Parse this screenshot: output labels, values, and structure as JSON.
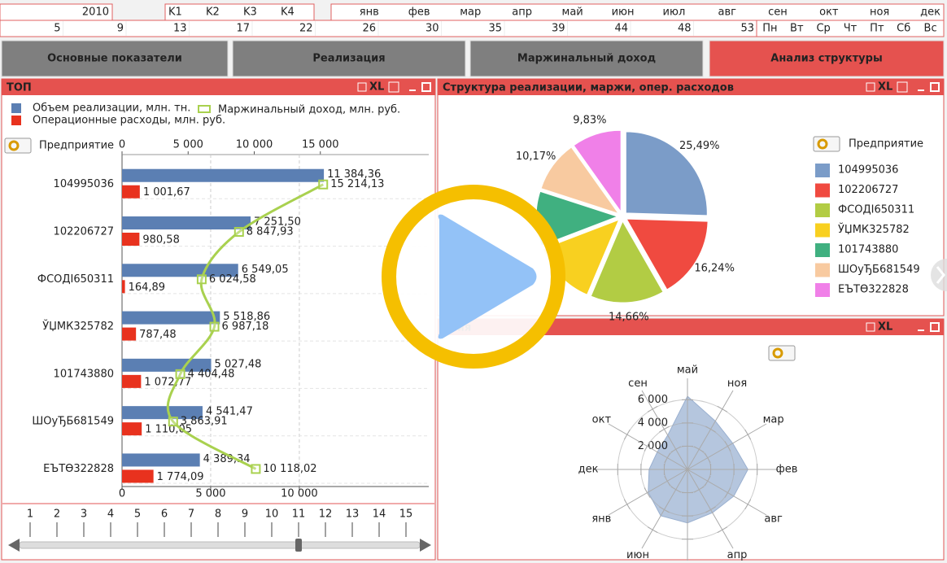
{
  "filters": {
    "year": "2010",
    "quarters": [
      "K1",
      "K2",
      "K3",
      "K4"
    ],
    "months": [
      "янв",
      "фев",
      "мар",
      "апр",
      "май",
      "июн",
      "июл",
      "авг",
      "сен",
      "окт",
      "ноя",
      "дек"
    ],
    "weeks": [
      5,
      9,
      13,
      17,
      22,
      26,
      30,
      35,
      39,
      44,
      48,
      53
    ],
    "weekdays": [
      "Пн",
      "Вт",
      "Ср",
      "Чт",
      "Пт",
      "Сб",
      "Вс"
    ]
  },
  "tabs": [
    "Основные показатели",
    "Реализация",
    "Маржинальный доход",
    "Анализ структуры"
  ],
  "icon_text": "XL",
  "top_panel": {
    "title": "ТОП",
    "dimension_label": "Предприятие",
    "chart_data": {
      "type": "bar",
      "orientation": "horizontal",
      "categories": [
        "104995036",
        "102206727",
        "ФСОДІ650311",
        "ЎЏМК325782",
        "101743880",
        "ШОуЂБ681549",
        "ЕЪТӨ322828"
      ],
      "series": [
        {
          "name": "Объем реализации, млн. тн.",
          "color": "#5b7fb3",
          "values": [
            11384.36,
            7251.5,
            6549.05,
            5518.86,
            5027.48,
            4541.47,
            4389.34
          ],
          "value_labels": [
            "11 384,36",
            "7 251,50",
            "6 549,05",
            "5 518,86",
            "5 027,48",
            "4 541,47",
            "4 389,34"
          ]
        },
        {
          "name": "Операционные расходы, млн. руб.",
          "color": "#e8321e",
          "values": [
            1001.67,
            980.58,
            164.89,
            787.48,
            1072.77,
            1110.05,
            1774.09
          ],
          "value_labels": [
            "1 001,67",
            "980,58",
            "164,89",
            "787,48",
            "1 072,77",
            "1 110,05",
            "1 774,09"
          ]
        },
        {
          "name": "Маржинальный доход, млн. руб.",
          "color": "#a9d14f",
          "type": "line",
          "axis": "x2",
          "values": [
            15214.13,
            8847.93,
            6024.58,
            6987.18,
            4404.48,
            3863.91,
            10118.02
          ],
          "value_labels": [
            "15 214,13",
            "8 847,93",
            "6 024,58",
            "6 987,18",
            "4 404,48",
            "3 863,91",
            "10 118,02"
          ]
        }
      ],
      "xlim": [
        0,
        17300
      ],
      "xticks": [
        0,
        {
          "value": 5000,
          "label": "5 000"
        },
        {
          "value": 10000,
          "label": "10 000"
        }
      ],
      "x2lim": [
        0,
        23200
      ],
      "x2ticks": [
        0,
        {
          "value": 5000,
          "label": "5 000"
        },
        {
          "value": 10000,
          "label": "10 000"
        },
        {
          "value": 15000,
          "label": "15 000"
        }
      ],
      "grid": true
    }
  },
  "slider": {
    "labels": [
      1,
      2,
      3,
      4,
      5,
      6,
      7,
      8,
      9,
      10,
      11,
      12,
      13,
      14,
      15
    ],
    "value": 11
  },
  "pie_panel": {
    "title": "Структура реализации, маржи, опер. расходов",
    "legend_title": "Предприятие",
    "chart_data": {
      "type": "pie",
      "categories": [
        "104995036",
        "102206727",
        "ФСОДІ650311",
        "ЎЏМК325782",
        "101743880",
        "ШОуЂБ681549",
        "ЕЪТӨ322828"
      ],
      "values": [
        25.49,
        16.24,
        14.66,
        12.8,
        10.81,
        10.17,
        9.83
      ],
      "value_labels": [
        "25,49%",
        "16,24%",
        "14,66%",
        null,
        null,
        "10,17%",
        "9,83%"
      ],
      "colors": [
        "#7b9cc8",
        "#f04a40",
        "#b2cc44",
        "#f8d020",
        "#40b080",
        "#f8caa0",
        "#f080e8"
      ]
    }
  },
  "radar_panel": {
    "title": "ания",
    "chart_data": {
      "type": "radar",
      "categories": [
        "май",
        "ноя",
        "мар",
        "фев",
        "авг",
        "апр",
        null,
        "июн",
        "янв",
        "дек",
        "окт",
        "сен"
      ],
      "values": [
        6300,
        4800,
        4500,
        5200,
        4600,
        4300,
        4600,
        4600,
        3900,
        3300,
        3000,
        3400
      ],
      "color": "#a8bcd8",
      "rlim": [
        0,
        7000
      ],
      "rticks": [
        {
          "value": 2000,
          "label": "2 000"
        },
        {
          "value": 4000,
          "label": "4 000"
        },
        {
          "value": 6000,
          "label": "6 000"
        }
      ]
    }
  }
}
